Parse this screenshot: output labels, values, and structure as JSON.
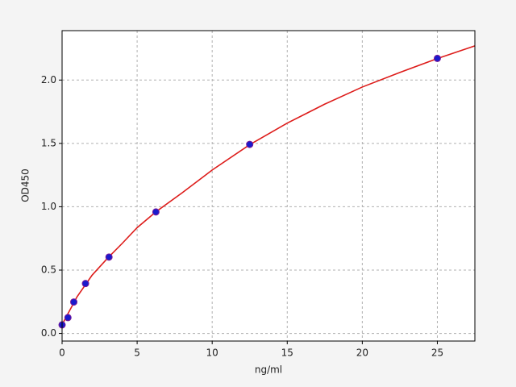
{
  "chart_data": {
    "type": "scatter",
    "xlabel": "ng/ml",
    "ylabel": "OD450",
    "xlim": [
      0,
      27.5
    ],
    "ylim": [
      -0.06,
      2.39
    ],
    "xticks": [
      0,
      5,
      10,
      15,
      20,
      25
    ],
    "yticks": [
      {
        "value": 0,
        "label": "0.0"
      },
      0.5,
      {
        "value": 1,
        "label": "1.0"
      },
      1.5,
      {
        "value": 2,
        "label": "2.0"
      }
    ],
    "grid": true,
    "series": [
      {
        "type": "line",
        "color": "#dd1c1a",
        "x": [
          0,
          1,
          2,
          3,
          4,
          5,
          6.25,
          8,
          10,
          12.5,
          15,
          17.5,
          20,
          22.5,
          25,
          27.5
        ],
        "values": [
          0.07,
          0.29,
          0.46,
          0.59,
          0.71,
          0.835,
          0.96,
          1.11,
          1.29,
          1.49,
          1.66,
          1.81,
          1.945,
          2.06,
          2.17,
          2.27
        ]
      },
      {
        "type": "scatter",
        "color": "#1a1acc",
        "edgecolor": "#7a1a9a",
        "x": [
          0,
          0.39,
          0.78,
          1.56,
          3.125,
          6.25,
          12.5,
          25
        ],
        "values": [
          0.068,
          0.125,
          0.248,
          0.394,
          0.603,
          0.959,
          1.492,
          2.171
        ]
      }
    ]
  }
}
